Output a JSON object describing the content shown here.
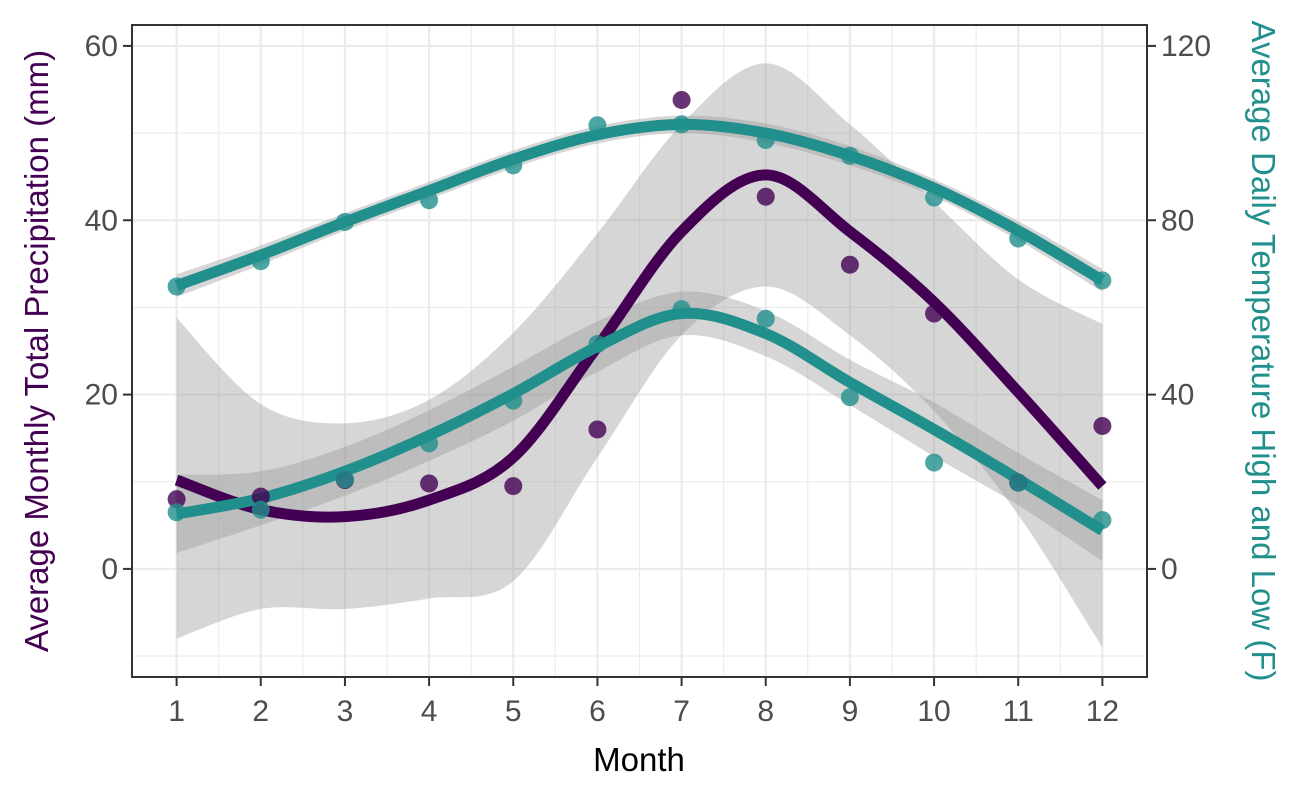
{
  "chart_data": {
    "type": "line",
    "title": "",
    "xlabel": "Month",
    "ylabel_left": "Average Monthly Total Precipitation (mm)",
    "ylabel_right": "Average Daily Temperature High and Low (F)",
    "x": [
      1,
      2,
      3,
      4,
      5,
      6,
      7,
      8,
      9,
      10,
      11,
      12
    ],
    "xlim": [
      0.47,
      12.53
    ],
    "ylim_left": [
      -12.4,
      62.4
    ],
    "ylim_right": [
      -24.8,
      124.8
    ],
    "yticks_left": [
      0,
      20,
      40,
      60
    ],
    "yticks_right": [
      0,
      40,
      80,
      120
    ],
    "colors": {
      "precip": "#440154",
      "temp": "#21908c",
      "ribbon": "#999999",
      "grid": "#ebebeb",
      "axis_line": "#333333",
      "tick_text": "#4d4d4d"
    },
    "series": [
      {
        "name": "Average Monthly Total Precipitation (mm)",
        "axis": "left",
        "color": "#440154",
        "points": [
          8.0,
          8.3,
          10.2,
          9.8,
          9.5,
          16.0,
          53.8,
          42.7,
          34.9,
          29.3,
          9.9,
          16.4
        ],
        "smooth": [
          10.2,
          6.8,
          6.0,
          7.9,
          12.8,
          25.5,
          38.7,
          45.2,
          38.7,
          30.6,
          20.3,
          9.5
        ],
        "ci_lower": [
          -8.0,
          -4.6,
          -4.6,
          -3.4,
          -1.4,
          12.8,
          26.8,
          32.4,
          26.8,
          18.1,
          6.2,
          -9.0
        ],
        "ci_upper": [
          28.8,
          18.9,
          16.7,
          19.4,
          27.1,
          38.5,
          51.0,
          58.0,
          51.0,
          42.1,
          33.2,
          28.1
        ]
      },
      {
        "name": "Average Daily Temperature High",
        "axis": "right",
        "color": "#21908c",
        "points": [
          64.8,
          70.6,
          79.6,
          84.6,
          92.6,
          101.8,
          102.0,
          98.4,
          94.8,
          85.2,
          75.8,
          66.2
        ],
        "smooth": [
          65.0,
          72.0,
          79.6,
          86.8,
          94.0,
          99.6,
          102.0,
          100.0,
          94.8,
          87.4,
          77.6,
          66.2
        ],
        "ci_lower": [
          62.4,
          69.8,
          77.6,
          84.8,
          92.0,
          97.6,
          100.0,
          97.8,
          92.6,
          85.4,
          75.4,
          63.6
        ],
        "ci_upper": [
          67.6,
          74.2,
          81.6,
          88.8,
          96.0,
          101.6,
          104.0,
          102.2,
          97.0,
          89.4,
          79.8,
          68.8
        ]
      },
      {
        "name": "Average Daily Temperature Low",
        "axis": "right",
        "color": "#21908c",
        "points": [
          13.0,
          13.6,
          20.6,
          28.8,
          38.6,
          51.6,
          59.6,
          57.4,
          39.4,
          24.4,
          19.8,
          11.2
        ],
        "smooth": [
          12.6,
          16.2,
          22.4,
          30.6,
          40.2,
          51.0,
          58.6,
          54.0,
          42.8,
          32.0,
          20.6,
          8.8
        ],
        "ci_lower": [
          3.6,
          10.0,
          16.8,
          24.8,
          34.0,
          45.2,
          53.6,
          48.8,
          37.6,
          25.8,
          14.6,
          1.8
        ],
        "ci_upper": [
          21.6,
          22.4,
          28.0,
          36.4,
          46.4,
          56.8,
          63.6,
          59.2,
          48.0,
          38.2,
          26.6,
          15.8
        ]
      }
    ]
  }
}
